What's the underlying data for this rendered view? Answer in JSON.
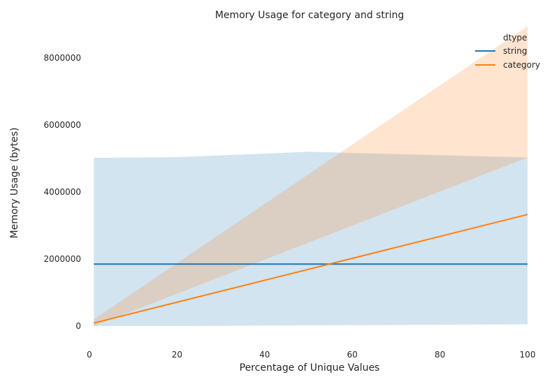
{
  "chart_data": {
    "type": "line",
    "title": "Memory Usage for category and string",
    "xlabel": "Percentage of Unique Values",
    "ylabel": "Memory Usage (bytes)",
    "xlim": [
      0,
      100
    ],
    "ylim": [
      -500000,
      9000000
    ],
    "xticks": [
      0,
      20,
      40,
      60,
      80,
      100
    ],
    "yticks": [
      0,
      2000000,
      4000000,
      6000000,
      8000000
    ],
    "xtick_labels": [
      "0",
      "20",
      "40",
      "60",
      "80",
      "100"
    ],
    "ytick_labels": [
      "0",
      "2000000",
      "4000000",
      "6000000",
      "8000000"
    ],
    "grid": false,
    "legend": {
      "title": "dtype",
      "placement": "top-right"
    },
    "series": [
      {
        "name": "string",
        "color": "#1f77b4",
        "line": {
          "x": [
            1,
            100
          ],
          "y": [
            1850000,
            1850000
          ]
        },
        "band": {
          "x": [
            1,
            20,
            50,
            100
          ],
          "upper": [
            5020000,
            5040000,
            5200000,
            5030000
          ],
          "lower": [
            0,
            0,
            20000,
            50000
          ]
        }
      },
      {
        "name": "category",
        "color": "#ff7f0e",
        "line": {
          "x": [
            1,
            100
          ],
          "y": [
            90000,
            3330000
          ]
        },
        "band": {
          "x": [
            1,
            100
          ],
          "upper": [
            200000,
            8950000
          ],
          "lower": [
            0,
            5030000
          ]
        }
      }
    ]
  }
}
